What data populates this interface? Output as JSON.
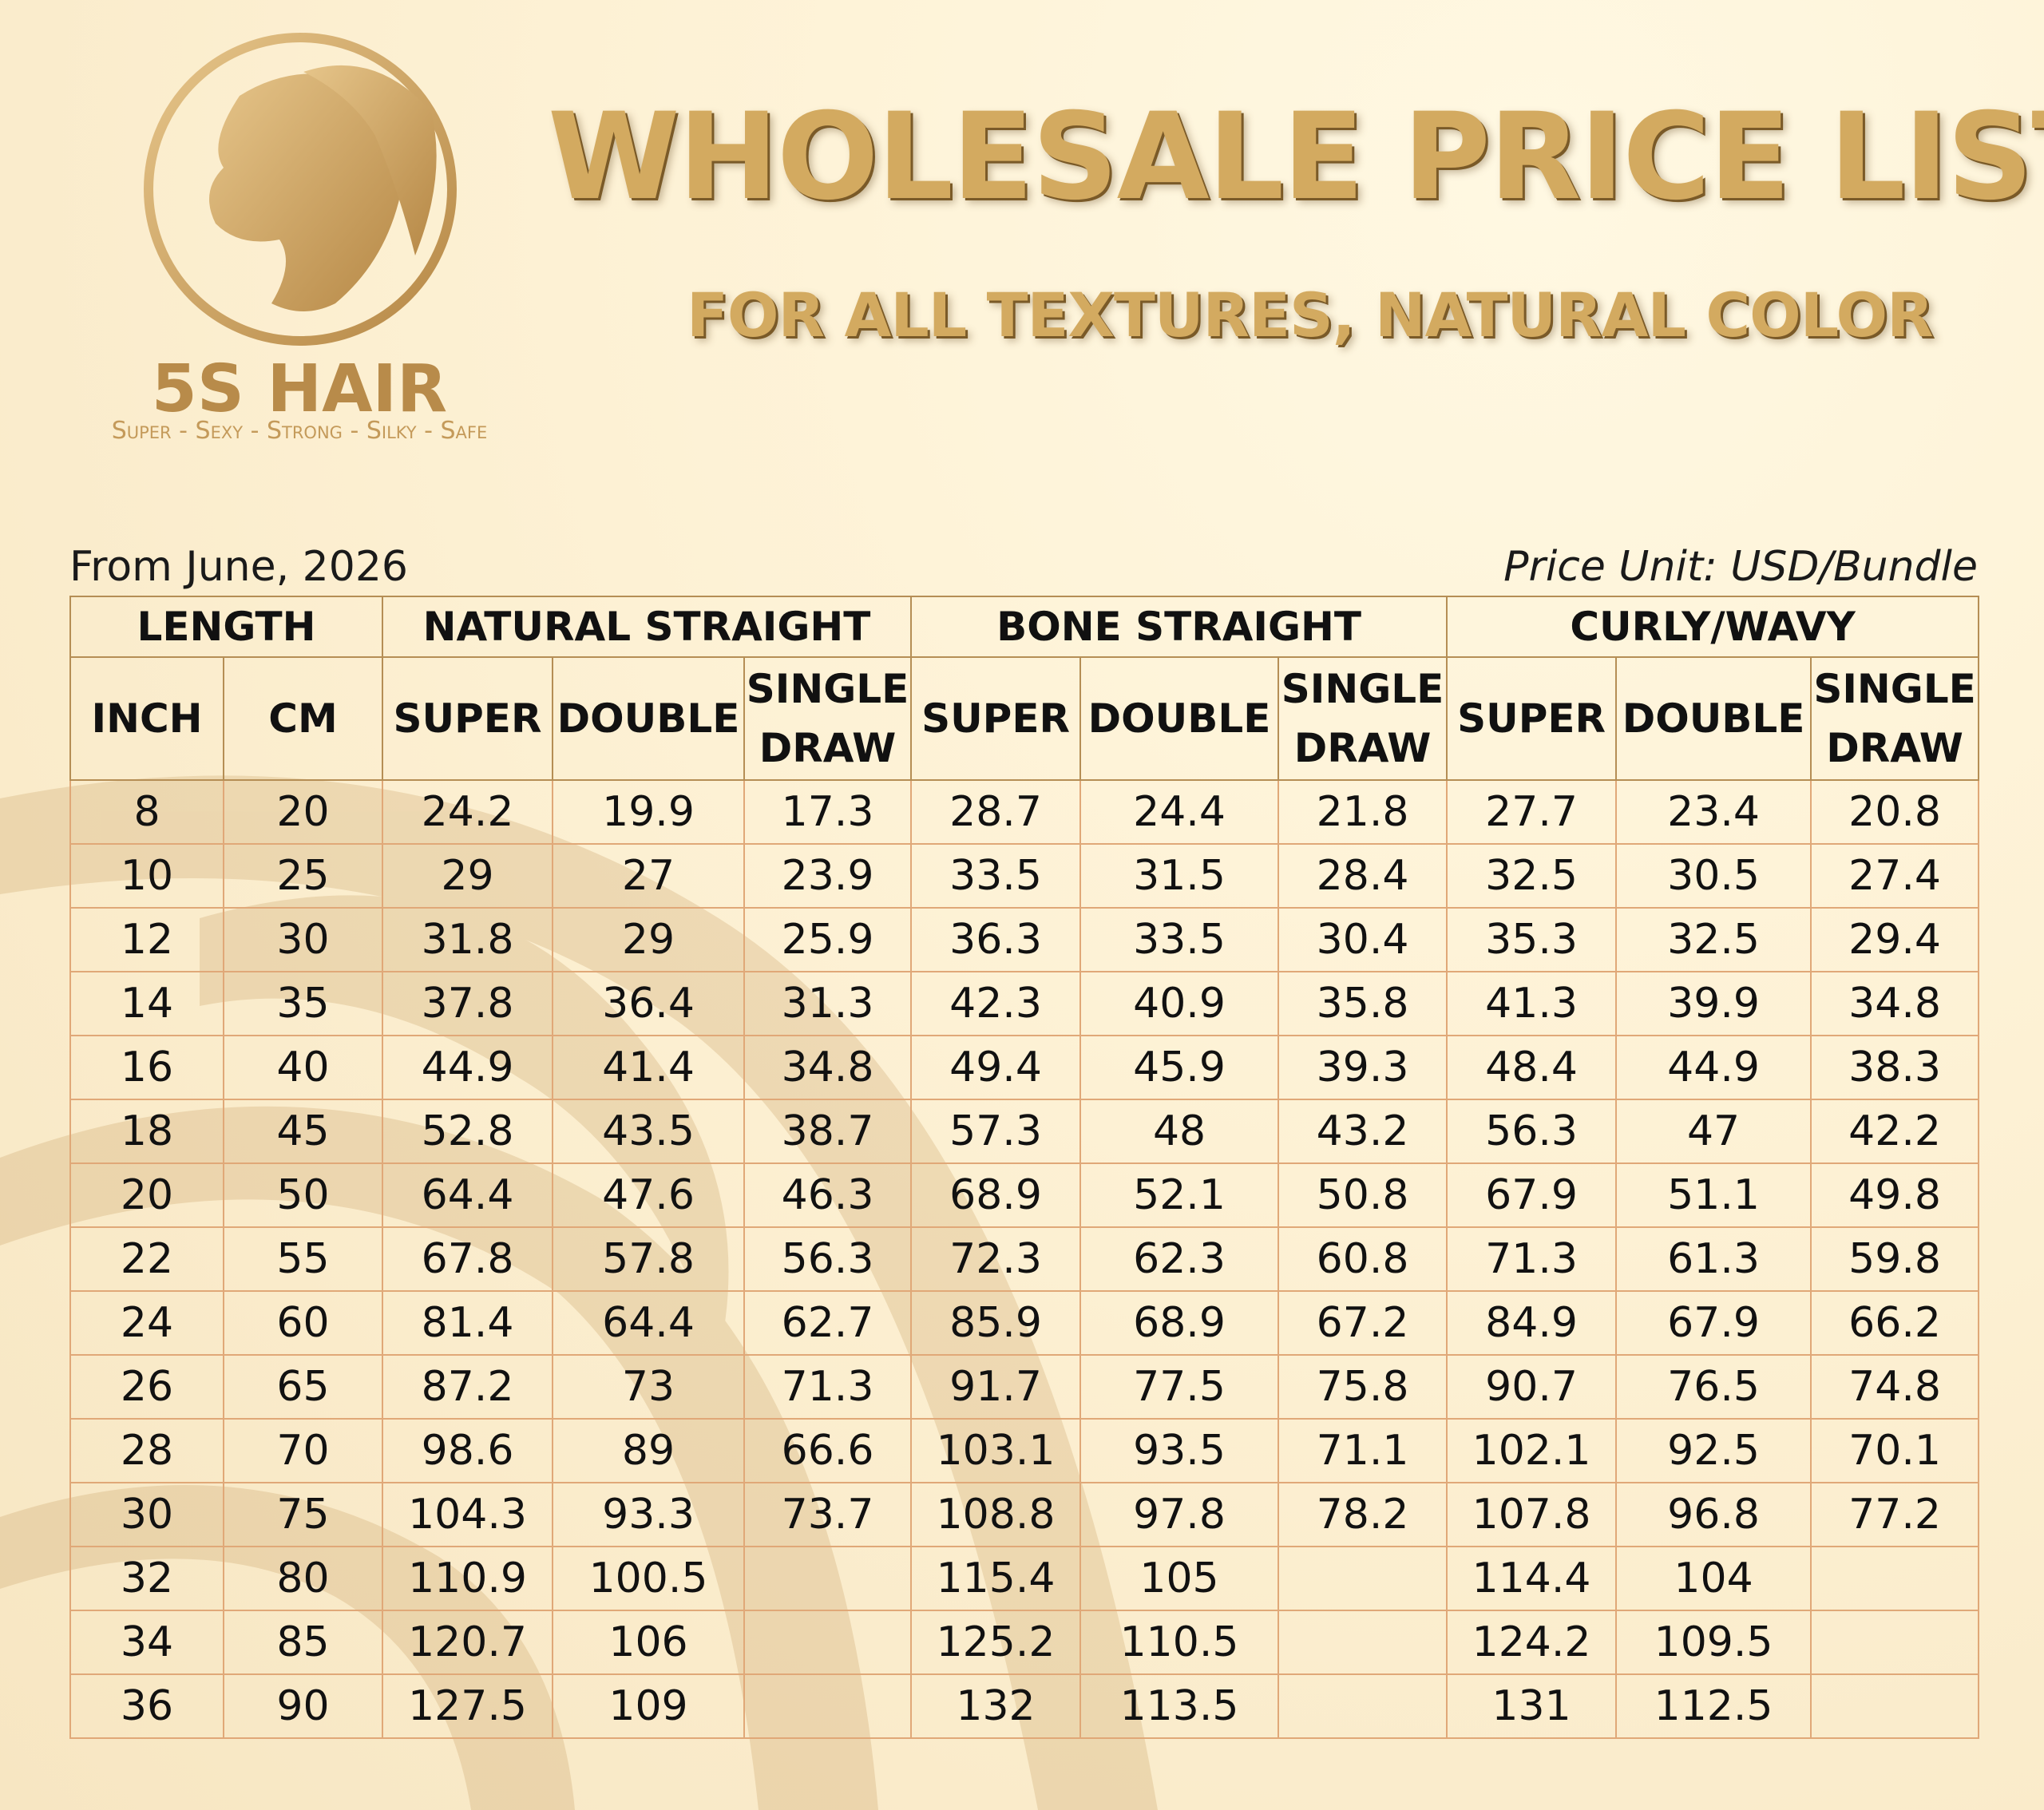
{
  "brand": {
    "name": "5S HAIR",
    "tagline": "Super - Sexy - Strong - Silky - Safe"
  },
  "header": {
    "title": "WHOLESALE PRICE LIST",
    "subtitle": "FOR ALL TEXTURES, NATURAL COLOR"
  },
  "meta": {
    "date": "From June, 2026",
    "unit": "Price Unit: USD/Bundle"
  },
  "table": {
    "groups": [
      {
        "label": "LENGTH",
        "span": 2
      },
      {
        "label": "NATURAL STRAIGHT",
        "span": 3
      },
      {
        "label": "BONE STRAIGHT",
        "span": 3
      },
      {
        "label": "CURLY/WAVY",
        "span": 3
      }
    ],
    "columns": [
      "INCH",
      "CM",
      "SUPER",
      "DOUBLE",
      "SINGLE DRAW",
      "SUPER",
      "DOUBLE",
      "SINGLE DRAW",
      "SUPER",
      "DOUBLE",
      "SINGLE DRAW"
    ],
    "rows": [
      [
        8,
        20,
        24.2,
        19.9,
        17.3,
        28.7,
        24.4,
        21.8,
        27.7,
        23.4,
        20.8
      ],
      [
        10,
        25,
        29,
        27,
        23.9,
        33.5,
        31.5,
        28.4,
        32.5,
        30.5,
        27.4
      ],
      [
        12,
        30,
        31.8,
        29,
        25.9,
        36.3,
        33.5,
        30.4,
        35.3,
        32.5,
        29.4
      ],
      [
        14,
        35,
        37.8,
        36.4,
        31.3,
        42.3,
        40.9,
        35.8,
        41.3,
        39.9,
        34.8
      ],
      [
        16,
        40,
        44.9,
        41.4,
        34.8,
        49.4,
        45.9,
        39.3,
        48.4,
        44.9,
        38.3
      ],
      [
        18,
        45,
        52.8,
        43.5,
        38.7,
        57.3,
        48,
        43.2,
        56.3,
        47,
        42.2
      ],
      [
        20,
        50,
        64.4,
        47.6,
        46.3,
        68.9,
        52.1,
        50.8,
        67.9,
        51.1,
        49.8
      ],
      [
        22,
        55,
        67.8,
        57.8,
        56.3,
        72.3,
        62.3,
        60.8,
        71.3,
        61.3,
        59.8
      ],
      [
        24,
        60,
        81.4,
        64.4,
        62.7,
        85.9,
        68.9,
        67.2,
        84.9,
        67.9,
        66.2
      ],
      [
        26,
        65,
        87.2,
        73,
        71.3,
        91.7,
        77.5,
        75.8,
        90.7,
        76.5,
        74.8
      ],
      [
        28,
        70,
        98.6,
        89,
        66.6,
        103.1,
        93.5,
        71.1,
        102.1,
        92.5,
        70.1
      ],
      [
        30,
        75,
        104.3,
        93.3,
        73.7,
        108.8,
        97.8,
        78.2,
        107.8,
        96.8,
        77.2
      ],
      [
        32,
        80,
        110.9,
        100.5,
        null,
        115.4,
        105,
        null,
        114.4,
        104,
        null
      ],
      [
        34,
        85,
        120.7,
        106,
        null,
        125.2,
        110.5,
        null,
        124.2,
        109.5,
        null
      ],
      [
        36,
        90,
        127.5,
        109,
        null,
        132,
        113.5,
        null,
        131,
        112.5,
        null
      ]
    ]
  }
}
